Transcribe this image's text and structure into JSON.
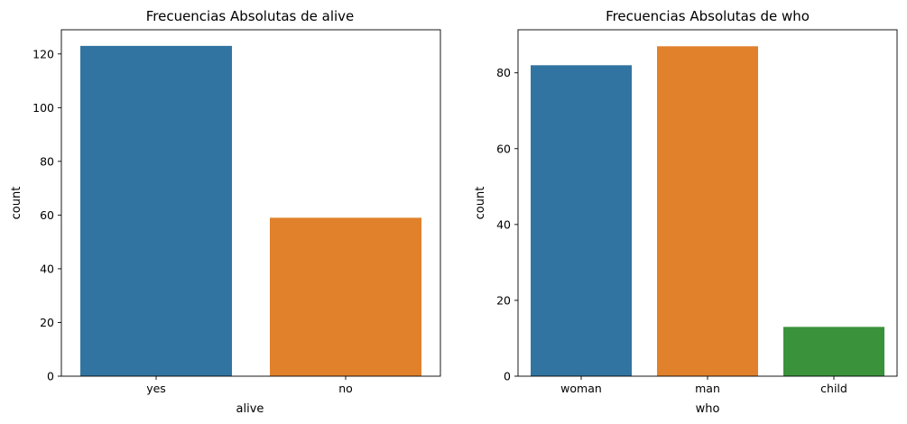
{
  "chart_data": [
    {
      "type": "bar",
      "title": "Frecuencias Absolutas de alive",
      "xlabel": "alive",
      "ylabel": "count",
      "categories": [
        "yes",
        "no"
      ],
      "values": [
        123,
        59
      ],
      "colors": [
        "#3274a1",
        "#e1812c"
      ],
      "ylim": [
        0,
        129
      ],
      "yticks": [
        0,
        20,
        40,
        60,
        80,
        100,
        120
      ],
      "ytick_labels": [
        "0",
        "20",
        "40",
        "60",
        "80",
        "100",
        "120"
      ],
      "grid": false
    },
    {
      "type": "bar",
      "title": "Frecuencias Absolutas de who",
      "xlabel": "who",
      "ylabel": "count",
      "categories": [
        "woman",
        "man",
        "child"
      ],
      "values": [
        82,
        87,
        13
      ],
      "colors": [
        "#3274a1",
        "#e1812c",
        "#3a923a"
      ],
      "ylim": [
        0,
        91.35
      ],
      "yticks": [
        0,
        20,
        40,
        60,
        80
      ],
      "ytick_labels": [
        "0",
        "20",
        "40",
        "60",
        "80"
      ],
      "grid": false
    }
  ]
}
